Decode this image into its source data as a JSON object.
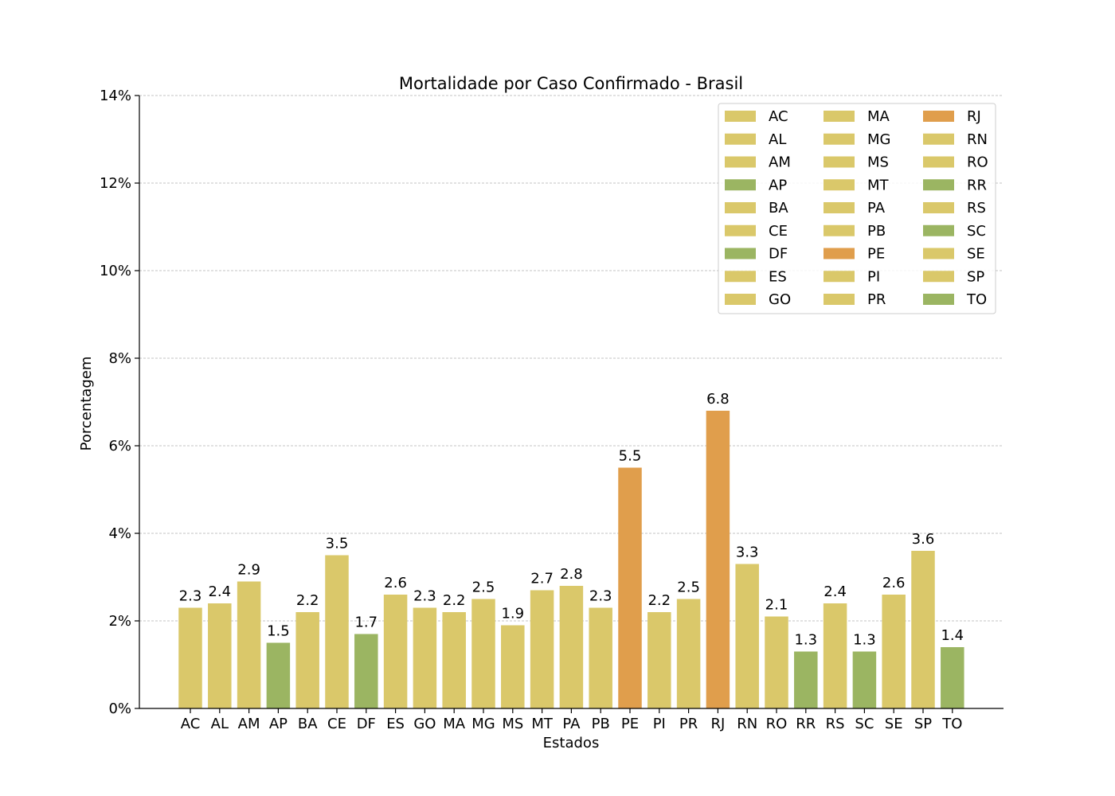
{
  "chart_data": {
    "type": "bar",
    "title": "Mortalidade por Caso Confirmado - Brasil",
    "xlabel": "Estados",
    "ylabel": "Porcentagem",
    "ylim": [
      0,
      14
    ],
    "yticks": [
      "0%",
      "2%",
      "4%",
      "6%",
      "8%",
      "10%",
      "12%",
      "14%"
    ],
    "ytick_values": [
      0,
      2,
      4,
      6,
      8,
      10,
      12,
      14
    ],
    "grid": "horizontal dashed",
    "legend_position": "top-right",
    "colors": {
      "moderate": "#dac86a",
      "low": "#9bb562",
      "high": "#e09e4c"
    },
    "categories": [
      "AC",
      "AL",
      "AM",
      "AP",
      "BA",
      "CE",
      "DF",
      "ES",
      "GO",
      "MA",
      "MG",
      "MS",
      "MT",
      "PA",
      "PB",
      "PE",
      "PI",
      "PR",
      "RJ",
      "RN",
      "RO",
      "RR",
      "RS",
      "SC",
      "SE",
      "SP",
      "TO"
    ],
    "values": [
      2.3,
      2.4,
      2.9,
      1.5,
      2.2,
      3.5,
      1.7,
      2.6,
      2.3,
      2.2,
      2.5,
      1.9,
      2.7,
      2.8,
      2.3,
      5.5,
      2.2,
      2.5,
      6.8,
      3.3,
      2.1,
      1.3,
      2.4,
      1.3,
      2.6,
      3.6,
      1.4
    ],
    "value_labels": [
      "2.3",
      "2.4",
      "2.9",
      "1.5",
      "2.2",
      "3.5",
      "1.7",
      "2.6",
      "2.3",
      "2.2",
      "2.5",
      "1.9",
      "2.7",
      "2.8",
      "2.3",
      "5.5",
      "2.2",
      "2.5",
      "6.8",
      "3.3",
      "2.1",
      "1.3",
      "2.4",
      "1.3",
      "2.6",
      "3.6",
      "1.4"
    ],
    "bar_colors": [
      "moderate",
      "moderate",
      "moderate",
      "low",
      "moderate",
      "moderate",
      "low",
      "moderate",
      "moderate",
      "moderate",
      "moderate",
      "moderate",
      "moderate",
      "moderate",
      "moderate",
      "high",
      "moderate",
      "moderate",
      "high",
      "moderate",
      "moderate",
      "low",
      "moderate",
      "low",
      "moderate",
      "moderate",
      "low"
    ],
    "legend": [
      "AC",
      "AL",
      "AM",
      "AP",
      "BA",
      "CE",
      "DF",
      "ES",
      "GO",
      "MA",
      "MG",
      "MS",
      "MT",
      "PA",
      "PB",
      "PE",
      "PI",
      "PR",
      "RJ",
      "RN",
      "RO",
      "RR",
      "RS",
      "SC",
      "SE",
      "SP",
      "TO"
    ]
  }
}
